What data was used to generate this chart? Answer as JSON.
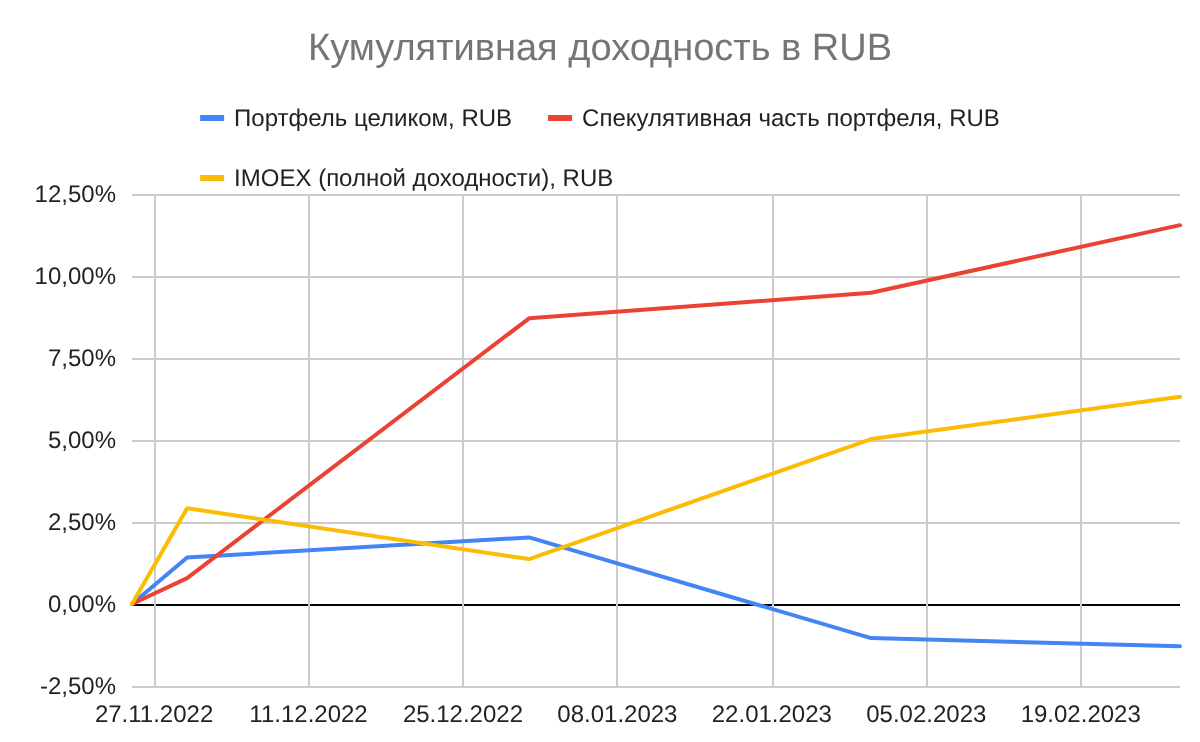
{
  "chart_data": {
    "type": "line",
    "title": "Кумулятивная доходность в RUB",
    "x": [
      "2022-11-25",
      "2022-11-30",
      "2022-12-31",
      "2023-01-31",
      "2023-02-28"
    ],
    "series": [
      {
        "name": "Портфель целиком, RUB",
        "color": "#4285f4",
        "values": [
          0,
          1.42,
          2.03,
          -1.04,
          -1.29
        ]
      },
      {
        "name": "Спекулятивная часть портфеля, RUB",
        "color": "#ea4335",
        "values": [
          0,
          0.79,
          8.71,
          9.49,
          11.55
        ]
      },
      {
        "name": "IMOEX (полной доходности), RUB",
        "color": "#fbbc04",
        "values": [
          0,
          2.92,
          1.37,
          5.03,
          6.32
        ]
      }
    ],
    "xlim": [
      "2022-11-25",
      "2023-02-28"
    ],
    "xticks": [
      {
        "value": "2022-11-27",
        "label": "27.11.2022"
      },
      {
        "value": "2022-12-11",
        "label": "11.12.2022"
      },
      {
        "value": "2022-12-25",
        "label": "25.12.2022"
      },
      {
        "value": "2023-01-08",
        "label": "08.01.2023"
      },
      {
        "value": "2023-01-22",
        "label": "22.01.2023"
      },
      {
        "value": "2023-02-05",
        "label": "05.02.2023"
      },
      {
        "value": "2023-02-19",
        "label": "19.02.2023"
      }
    ],
    "ylim": [
      -2.5,
      12.5
    ],
    "yticks": [
      {
        "value": -2.5,
        "label": "-2,50%"
      },
      {
        "value": 0,
        "label": "0,00%"
      },
      {
        "value": 2.5,
        "label": "2,50%"
      },
      {
        "value": 5,
        "label": "5,00%"
      },
      {
        "value": 7.5,
        "label": "7,50%"
      },
      {
        "value": 10,
        "label": "10,00%"
      },
      {
        "value": 12.5,
        "label": "12,50%"
      }
    ],
    "grid": true,
    "legend": "top",
    "marker": "none",
    "line_style": "solid"
  }
}
